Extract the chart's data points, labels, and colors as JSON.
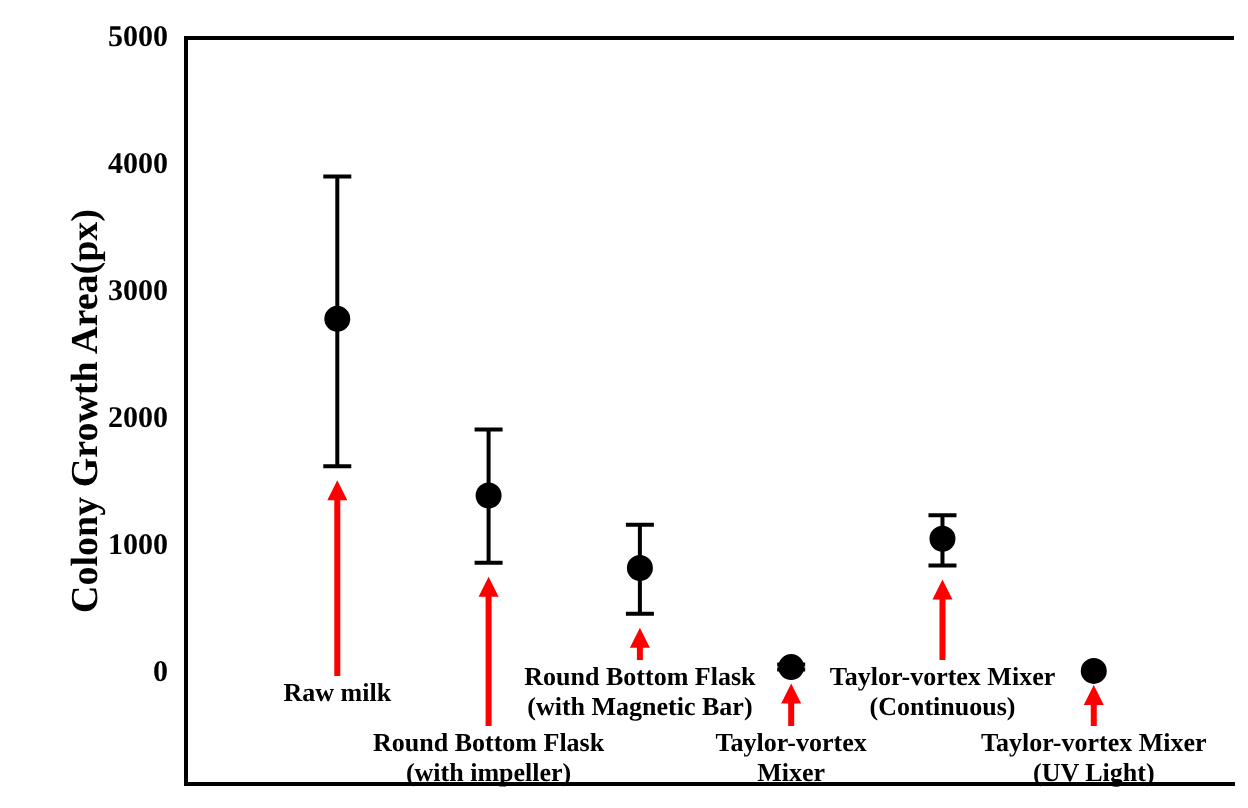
{
  "chart_data": {
    "type": "scatter",
    "ylabel": "Colony Growth Area(px)",
    "categories": [
      "Raw milk",
      "Round Bottom Flask\n(with impeller)",
      "Round Bottom Flask\n(with Magnetic Bar)",
      "Taylor-vortex\nMixer",
      "Taylor-vortex Mixer\n(Continuous)",
      "Taylor-vortex Mixer\n(UV Light)"
    ],
    "values": [
      2790,
      1400,
      830,
      50,
      1060,
      20
    ],
    "errors": [
      [
        1630,
        3910
      ],
      [
        870,
        1920
      ],
      [
        470,
        1170
      ],
      [
        30,
        70
      ],
      [
        850,
        1245
      ],
      null
    ],
    "color": "#000000",
    "marker": "circle",
    "ylim": [
      -870,
      5000
    ],
    "yticks": [
      0,
      1000,
      2000,
      3000,
      4000,
      5000
    ],
    "grid": false,
    "legend": false
  }
}
